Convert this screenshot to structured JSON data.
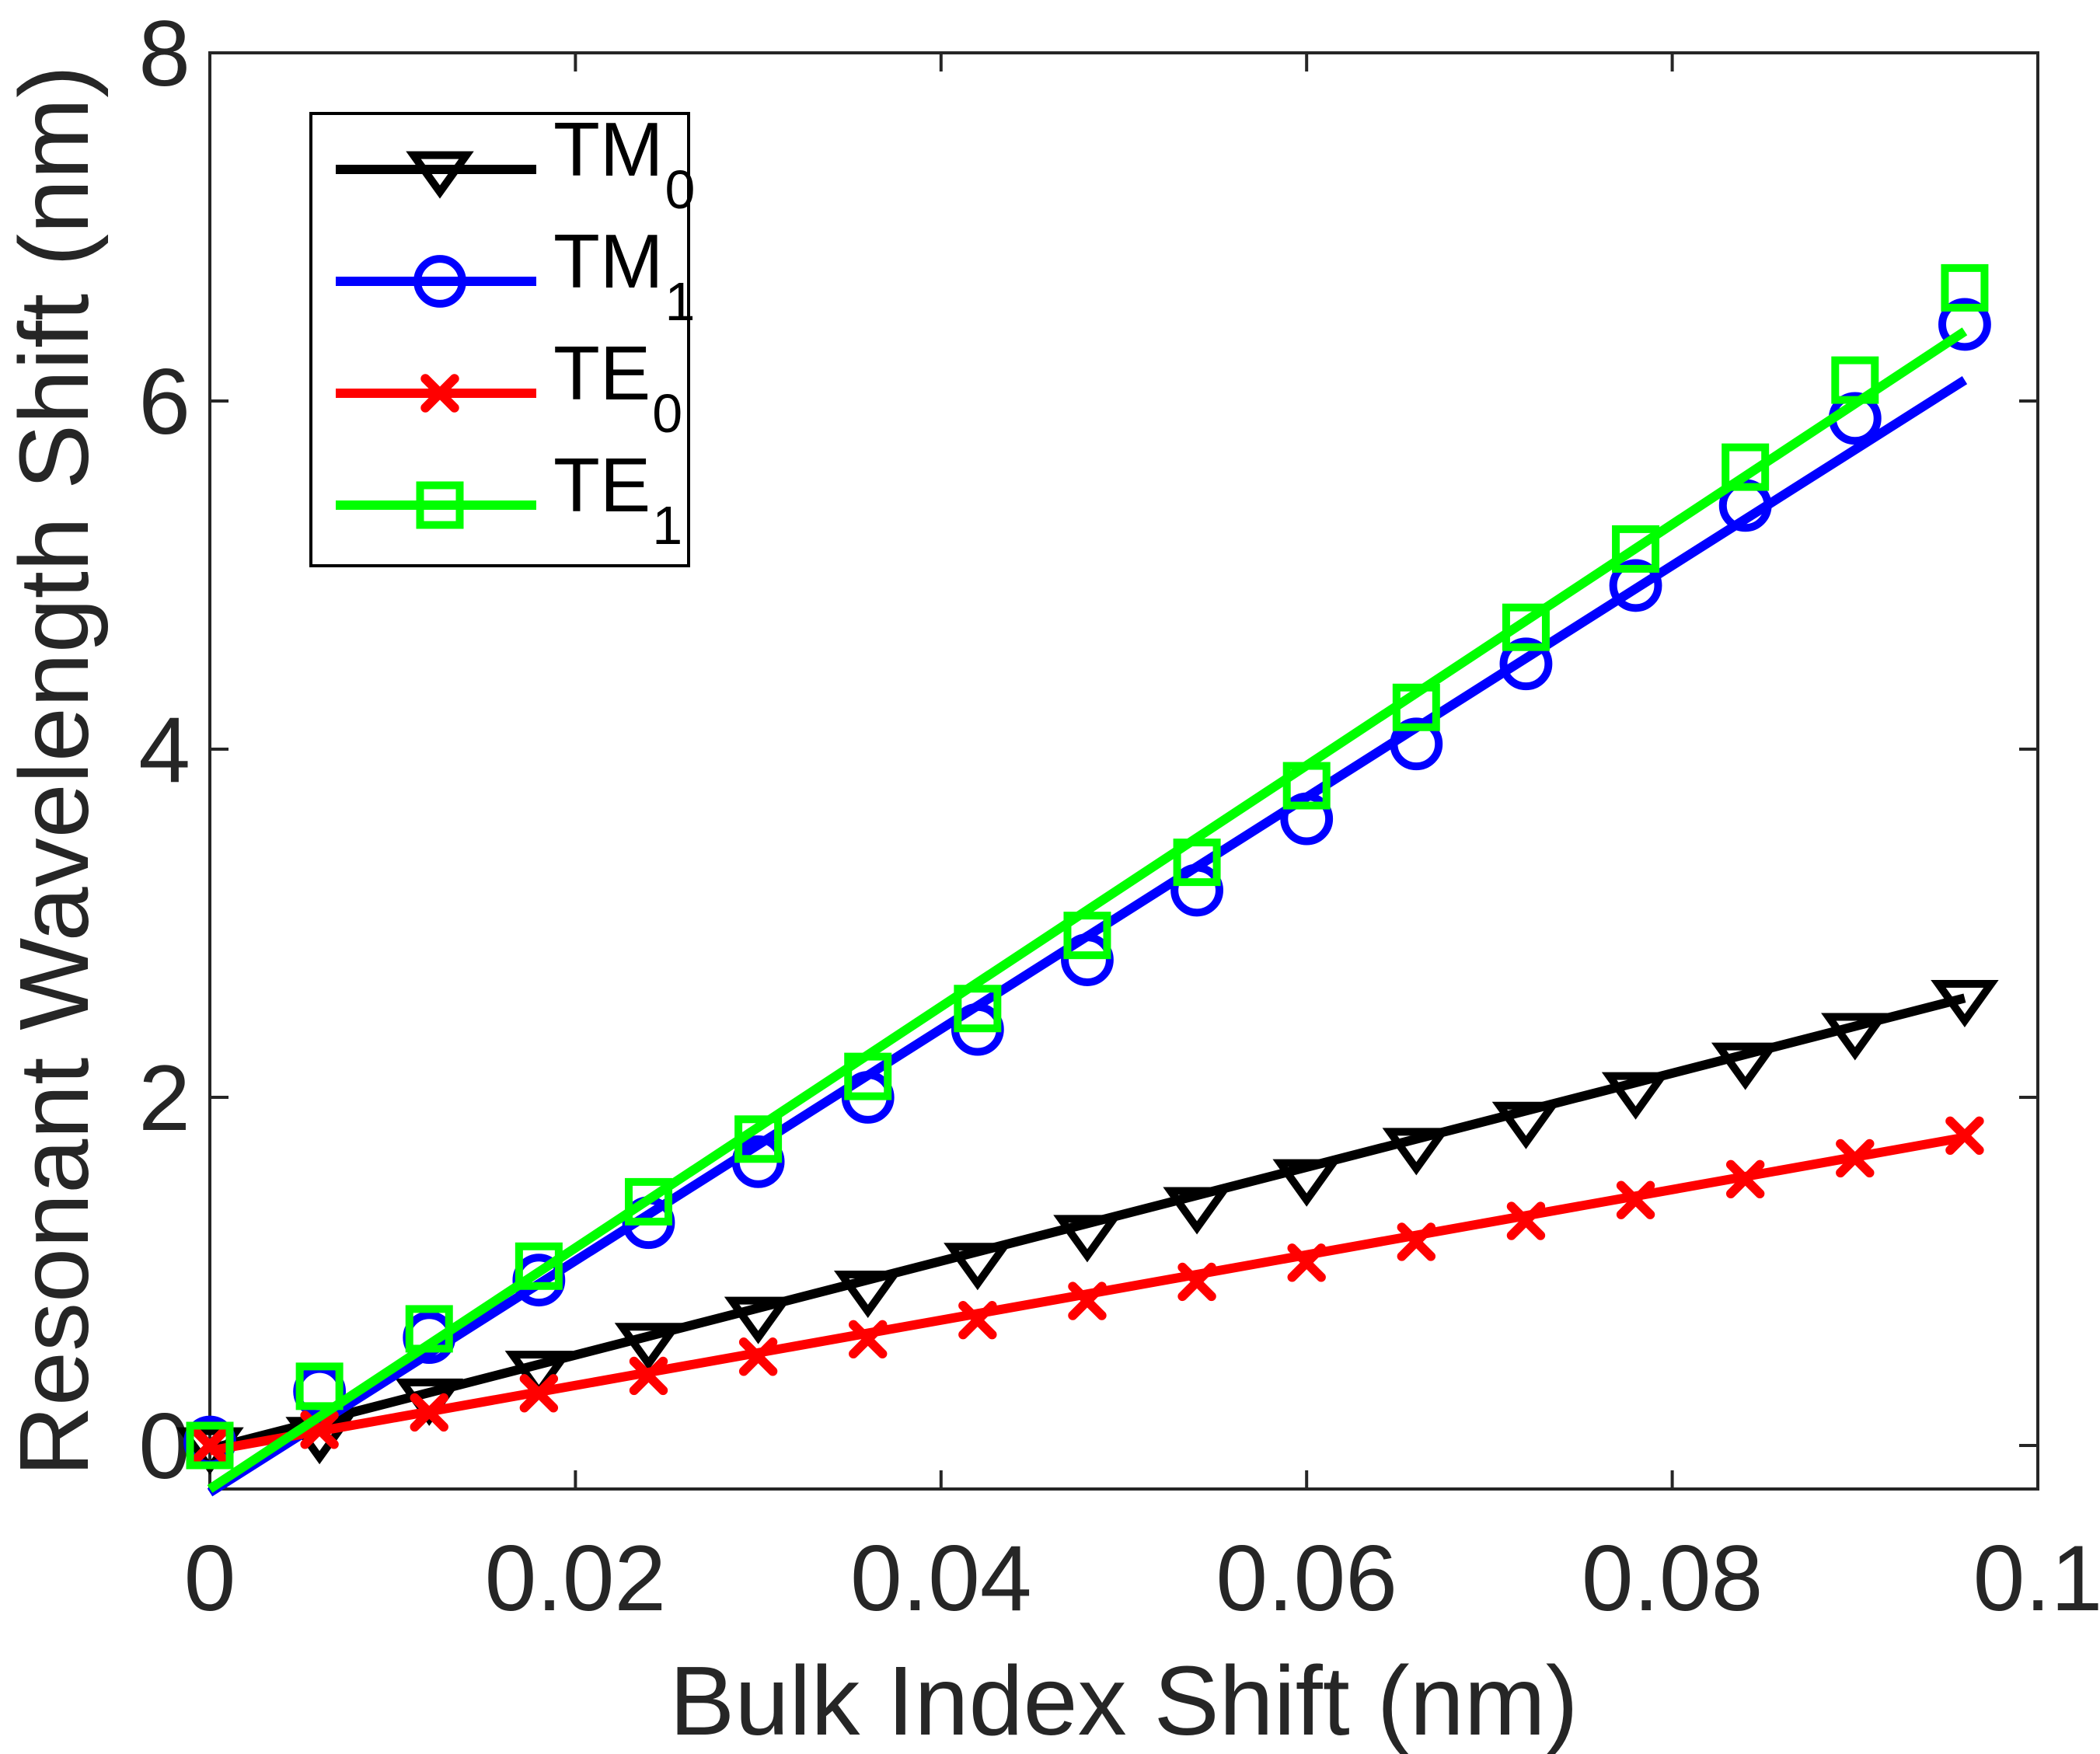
{
  "chart_data": {
    "type": "line",
    "title": "",
    "xlabel": "Bulk Index Shift (nm)",
    "ylabel": "Resonant Wavelength Shift (nm)",
    "xlim": [
      0,
      0.1
    ],
    "ylim": [
      -0.25,
      8
    ],
    "x_ticks": [
      0,
      0.02,
      0.04,
      0.06,
      0.08,
      0.1
    ],
    "x_tick_labels": [
      "0",
      "0.02",
      "0.04",
      "0.06",
      "0.08",
      "0.1"
    ],
    "y_ticks": [
      0,
      2,
      4,
      6,
      8
    ],
    "y_tick_labels": [
      "0",
      "2",
      "4",
      "6",
      "8"
    ],
    "grid": false,
    "legend_position": "top-left",
    "x": [
      0,
      0.006,
      0.012,
      0.018,
      0.024,
      0.03,
      0.036,
      0.042,
      0.048,
      0.054,
      0.06,
      0.066,
      0.072,
      0.078,
      0.084,
      0.09,
      0.096
    ],
    "series": [
      {
        "name": "TM",
        "subscript": "0",
        "color": "#000000",
        "marker": "triangle-down",
        "values": [
          0.0,
          0.06,
          0.28,
          0.44,
          0.6,
          0.75,
          0.9,
          1.06,
          1.22,
          1.38,
          1.54,
          1.72,
          1.87,
          2.04,
          2.21,
          2.38,
          2.57
        ],
        "fit": {
          "x": [
            0,
            0.096
          ],
          "y": [
            -0.02,
            2.57
          ]
        }
      },
      {
        "name": "TM",
        "subscript": "1",
        "color": "#0000ff",
        "marker": "circle",
        "values": [
          0.02,
          0.31,
          0.62,
          0.95,
          1.28,
          1.63,
          2.0,
          2.39,
          2.79,
          3.19,
          3.6,
          4.03,
          4.49,
          4.94,
          5.4,
          5.9,
          6.44
        ],
        "fit": {
          "x": [
            0,
            0.096
          ],
          "y": [
            -0.27,
            6.12
          ]
        }
      },
      {
        "name": "TE",
        "subscript": "0",
        "color": "#ff0000",
        "marker": "x",
        "values": [
          0.0,
          0.09,
          0.19,
          0.3,
          0.4,
          0.51,
          0.61,
          0.72,
          0.83,
          0.94,
          1.05,
          1.17,
          1.29,
          1.41,
          1.53,
          1.65,
          1.78
        ],
        "fit": {
          "x": [
            0,
            0.096
          ],
          "y": [
            -0.03,
            1.77
          ]
        }
      },
      {
        "name": "TE",
        "subscript": "1",
        "color": "#00ff00",
        "marker": "square",
        "values": [
          0.0,
          0.34,
          0.67,
          1.03,
          1.4,
          1.76,
          2.12,
          2.51,
          2.93,
          3.35,
          3.79,
          4.24,
          4.7,
          5.15,
          5.62,
          6.12,
          6.65
        ],
        "fit": {
          "x": [
            0,
            0.096
          ],
          "y": [
            -0.25,
            6.4
          ]
        }
      }
    ]
  }
}
